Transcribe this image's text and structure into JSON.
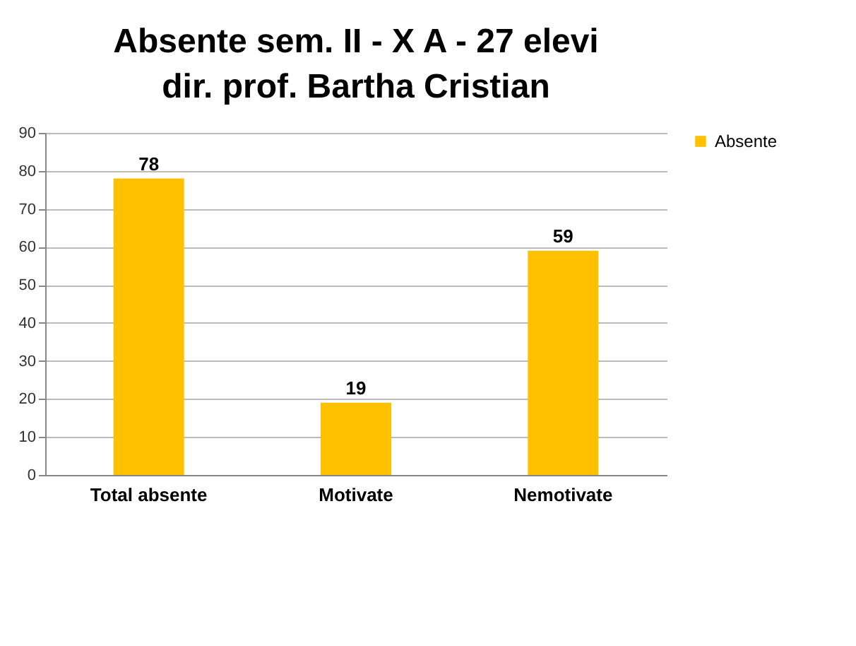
{
  "chart_data": {
    "type": "bar",
    "title": "Absente sem. II - X A - 27 elevi\ndir. prof. Bartha Cristian",
    "categories": [
      "Total absente",
      "Motivate",
      "Nemotivate"
    ],
    "series": [
      {
        "name": "Absente",
        "color": "#ffc000",
        "values": [
          78,
          19,
          59
        ]
      }
    ],
    "ylim": [
      0,
      90
    ],
    "yticks": [
      0,
      10,
      20,
      30,
      40,
      50,
      60,
      70,
      80,
      90
    ],
    "grid": "y",
    "legend": "right",
    "data_labels": true
  }
}
